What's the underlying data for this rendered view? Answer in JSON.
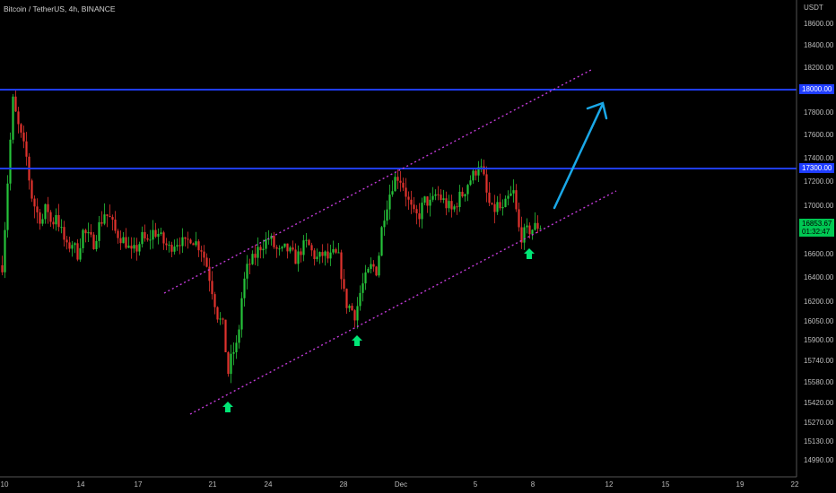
{
  "header": {
    "title": "Bitcoin / TetherUS, 4h, BINANCE"
  },
  "colors": {
    "bull": "#26c23a",
    "bear": "#e0322d",
    "level_line": "#1f3dff",
    "channel": "#c23bd8",
    "arrow_up": "#00e676",
    "projection": "#1aa8e8",
    "price_tag": "#00c853"
  },
  "chart_data": {
    "type": "candlestick",
    "title": "Bitcoin / TetherUS, 4h, BINANCE",
    "currency": "USDT",
    "y_ticks": [
      18600,
      18400,
      18200,
      17800,
      17600,
      17400,
      17200,
      17000,
      16600,
      16400,
      16200,
      16050,
      15900,
      15740,
      15580,
      15420,
      15270,
      15130,
      14990
    ],
    "x_ticks": [
      "10",
      "14",
      "17",
      "21",
      "24",
      "28",
      "Dec",
      "5",
      "8",
      "12",
      "15",
      "19",
      "22"
    ],
    "levels": [
      {
        "label": "18000.00",
        "value": 18000
      },
      {
        "label": "17300.00",
        "value": 17300
      }
    ],
    "last_price": {
      "value": "16853.67",
      "countdown": "01:32:47"
    },
    "grid": false
  }
}
